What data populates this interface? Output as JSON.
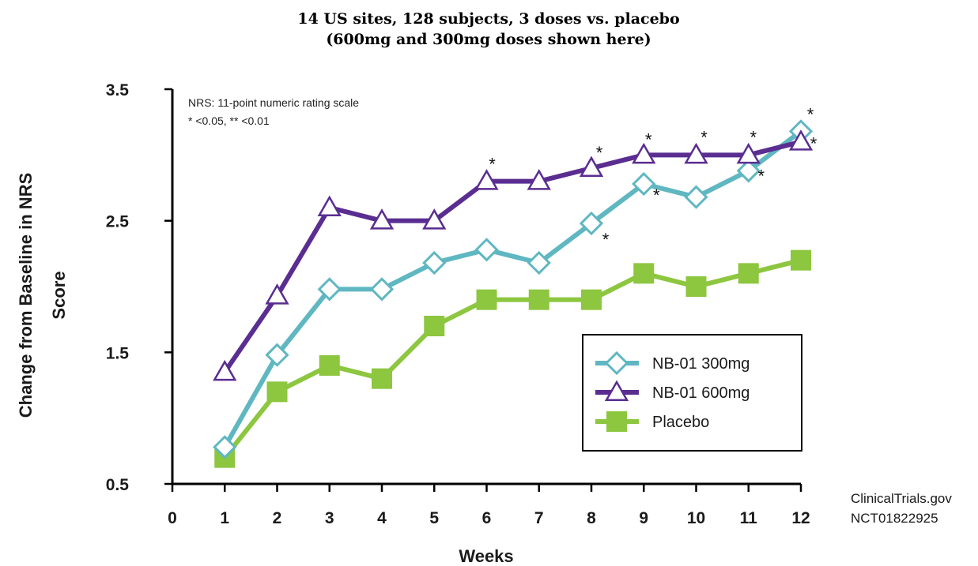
{
  "chart_data": {
    "type": "line",
    "title": [
      "14 US sites, 128 subjects, 3 doses vs. placebo",
      "(600mg and 300mg doses shown here)"
    ],
    "xlabel": "Weeks",
    "ylabel": [
      "Change from Baseline in NRS",
      "Score"
    ],
    "x_ticks": [
      "0",
      "1",
      "2",
      "3",
      "4",
      "5",
      "6",
      "7",
      "8",
      "9",
      "10",
      "11",
      "12"
    ],
    "y_ticks": [
      "0.5",
      "1.5",
      "2.5",
      "3.5"
    ],
    "xlim": [
      0,
      12
    ],
    "ylim": [
      0.5,
      3.5
    ],
    "notes": [
      "NRS: 11-point numeric rating scale",
      "* <0.05, ** <0.01"
    ],
    "source": [
      "ClinicalTrials.gov",
      "NCT01822925"
    ],
    "legend_position": "bottom-right",
    "series": [
      {
        "name": "NB-01 300mg",
        "color": "#5fb7c1",
        "marker": "diamond",
        "x": [
          1,
          2,
          3,
          4,
          5,
          6,
          7,
          8,
          9,
          10,
          11,
          12
        ],
        "y": [
          0.78,
          1.48,
          1.98,
          1.98,
          2.18,
          2.28,
          2.18,
          2.48,
          2.78,
          2.68,
          2.88,
          3.18
        ],
        "significant_weeks": [
          8,
          9,
          11,
          12
        ]
      },
      {
        "name": "NB-01 600mg",
        "color": "#5a2d91",
        "marker": "triangle",
        "x": [
          1,
          2,
          3,
          4,
          5,
          6,
          7,
          8,
          9,
          10,
          11,
          12
        ],
        "y": [
          1.35,
          1.93,
          2.6,
          2.5,
          2.5,
          2.8,
          2.8,
          2.9,
          3.0,
          3.0,
          3.0,
          3.1
        ],
        "significant_weeks": [
          6,
          8,
          9,
          10,
          11,
          12
        ]
      },
      {
        "name": "Placebo",
        "color": "#8dc63f",
        "marker": "square",
        "x": [
          1,
          2,
          3,
          4,
          5,
          6,
          7,
          8,
          9,
          10,
          11,
          12
        ],
        "y": [
          0.7,
          1.2,
          1.4,
          1.3,
          1.7,
          1.9,
          1.9,
          1.9,
          2.1,
          2.0,
          2.1,
          2.2
        ],
        "significant_weeks": []
      }
    ]
  }
}
